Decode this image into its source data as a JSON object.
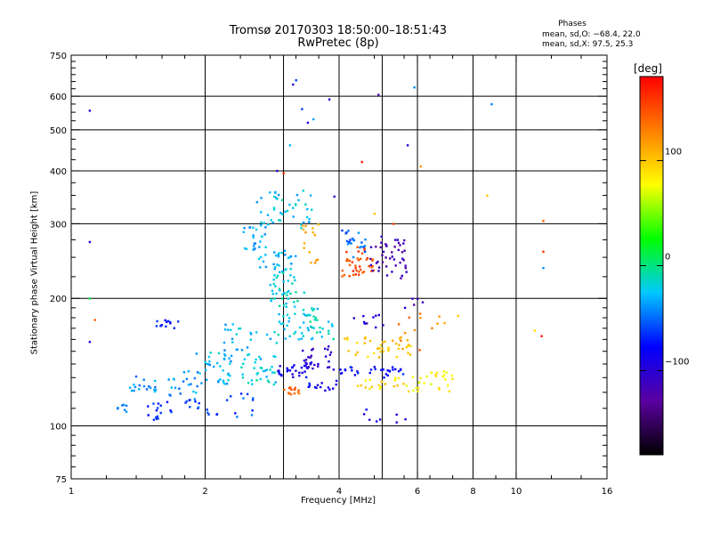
{
  "header": {
    "title_line1": "Tromsø 20170303 18:50:00–18:51:43",
    "title_line2": "RwPretec (8p)",
    "phases_label": "Phases",
    "stat_o": "mean, sd,O: −68.4, 22.0",
    "stat_x": "mean, sd,X:  97.5, 25.3"
  },
  "colorbar": {
    "title": "[deg]",
    "ticks": [
      {
        "value": 100,
        "label": "100"
      },
      {
        "value": 0,
        "label": "0"
      },
      {
        "value": -100,
        "label": "−100"
      }
    ],
    "range": [
      -180,
      180
    ],
    "colors": [
      "#000000",
      "#5a00a0",
      "#0000ff",
      "#00c8ff",
      "#00ff00",
      "#ffff00",
      "#ff7f00",
      "#ff0000"
    ]
  },
  "chart_data": {
    "type": "scatter",
    "xlabel": "Frequency [MHz]",
    "ylabel": "Stationary phase Virtual Height [km]",
    "xscale": "log",
    "yscale": "log",
    "xlim": [
      1,
      16
    ],
    "ylim": [
      75,
      750
    ],
    "grid": true,
    "xticks": [
      {
        "value": 1,
        "label": "1"
      },
      {
        "value": 2,
        "label": "2"
      },
      {
        "value": 4,
        "label": "4"
      },
      {
        "value": 6,
        "label": "6"
      },
      {
        "value": 8,
        "label": "8"
      },
      {
        "value": 10,
        "label": "10"
      },
      {
        "value": 16,
        "label": "16"
      }
    ],
    "yticks": [
      {
        "value": 75,
        "label": "75"
      },
      {
        "value": 100,
        "label": "100"
      },
      {
        "value": 200,
        "label": "200"
      },
      {
        "value": 300,
        "label": "300"
      },
      {
        "value": 400,
        "label": "400"
      },
      {
        "value": 500,
        "label": "500"
      },
      {
        "value": 600,
        "label": "600"
      },
      {
        "value": 750,
        "label": "750"
      }
    ],
    "x_gridlines": [
      2,
      3,
      4,
      5,
      6,
      8,
      10
    ],
    "y_gridlines": [
      100,
      200,
      300,
      400,
      500,
      600
    ],
    "clusters": [
      {
        "f": [
          1.25,
          1.35
        ],
        "h": [
          107,
          118
        ],
        "phase": -45,
        "n": 7
      },
      {
        "f": [
          1.35,
          1.55
        ],
        "h": [
          120,
          132
        ],
        "phase": -40,
        "n": 18
      },
      {
        "f": [
          1.45,
          1.7
        ],
        "h": [
          102,
          115
        ],
        "phase": -70,
        "n": 16
      },
      {
        "f": [
          1.55,
          1.75
        ],
        "h": [
          170,
          178
        ],
        "phase": -70,
        "n": 12
      },
      {
        "f": [
          1.65,
          1.95
        ],
        "h": [
          118,
          135
        ],
        "phase": -40,
        "n": 20
      },
      {
        "f": [
          1.8,
          2.0
        ],
        "h": [
          108,
          116
        ],
        "phase": -60,
        "n": 10
      },
      {
        "f": [
          1.9,
          2.3
        ],
        "h": [
          125,
          150
        ],
        "phase": -30,
        "n": 30
      },
      {
        "f": [
          2.0,
          2.6
        ],
        "h": [
          105,
          120
        ],
        "phase": -55,
        "n": 16
      },
      {
        "f": [
          2.2,
          2.9
        ],
        "h": [
          140,
          175
        ],
        "phase": -30,
        "n": 40
      },
      {
        "f": [
          2.4,
          2.9
        ],
        "h": [
          125,
          138
        ],
        "phase": -20,
        "n": 25
      },
      {
        "f": [
          2.4,
          2.75
        ],
        "h": [
          260,
          295
        ],
        "phase": -35,
        "n": 22
      },
      {
        "f": [
          2.6,
          3.5
        ],
        "h": [
          290,
          360
        ],
        "phase": -25,
        "n": 45
      },
      {
        "f": [
          2.6,
          3.2
        ],
        "h": [
          230,
          260
        ],
        "phase": -30,
        "n": 30
      },
      {
        "f": [
          2.8,
          3.4
        ],
        "h": [
          195,
          230
        ],
        "phase": -15,
        "n": 35
      },
      {
        "f": [
          2.9,
          3.6
        ],
        "h": [
          160,
          195
        ],
        "phase": -20,
        "n": 45
      },
      {
        "f": [
          2.9,
          3.4
        ],
        "h": [
          130,
          140
        ],
        "phase": -85,
        "n": 25
      },
      {
        "f": [
          3.3,
          3.9
        ],
        "h": [
          135,
          155
        ],
        "phase": -100,
        "n": 30
      },
      {
        "f": [
          3.0,
          3.3
        ],
        "h": [
          118,
          124
        ],
        "phase": 140,
        "n": 15
      },
      {
        "f": [
          3.3,
          3.6
        ],
        "h": [
          240,
          300
        ],
        "phase": 110,
        "n": 15
      },
      {
        "f": [
          3.4,
          4.0
        ],
        "h": [
          120,
          128
        ],
        "phase": -80,
        "n": 15
      },
      {
        "f": [
          3.4,
          3.9
        ],
        "h": [
          160,
          180
        ],
        "phase": -15,
        "n": 15
      },
      {
        "f": [
          4.05,
          4.25
        ],
        "h": [
          265,
          290
        ],
        "phase": -60,
        "n": 8
      },
      {
        "f": [
          4.05,
          4.8
        ],
        "h": [
          225,
          265
        ],
        "phase": 150,
        "n": 40
      },
      {
        "f": [
          4.7,
          5.7
        ],
        "h": [
          220,
          280
        ],
        "phase": -115,
        "n": 45
      },
      {
        "f": [
          4.1,
          4.6
        ],
        "h": [
          250,
          290
        ],
        "phase": -45,
        "n": 15
      },
      {
        "f": [
          4.1,
          5.8
        ],
        "h": [
          145,
          162
        ],
        "phase": 100,
        "n": 40
      },
      {
        "f": [
          4.0,
          5.6
        ],
        "h": [
          130,
          138
        ],
        "phase": -75,
        "n": 30
      },
      {
        "f": [
          4.4,
          5.6
        ],
        "h": [
          122,
          130
        ],
        "phase": 90,
        "n": 20
      },
      {
        "f": [
          4.3,
          5.2
        ],
        "h": [
          170,
          185
        ],
        "phase": -100,
        "n": 10
      },
      {
        "f": [
          5.6,
          7.2
        ],
        "h": [
          120,
          135
        ],
        "phase": 80,
        "n": 30
      },
      {
        "f": [
          5.4,
          6.8
        ],
        "h": [
          150,
          185
        ],
        "phase": 130,
        "n": 12
      },
      {
        "f": [
          5.6,
          6.4
        ],
        "h": [
          190,
          200
        ],
        "phase": -110,
        "n": 5
      },
      {
        "f": [
          4.5,
          5.7
        ],
        "h": [
          102,
          110
        ],
        "phase": -90,
        "n": 8
      }
    ],
    "points": [
      {
        "f": 1.1,
        "h": 555,
        "phase": -100
      },
      {
        "f": 1.1,
        "h": 272,
        "phase": -100
      },
      {
        "f": 1.1,
        "h": 158,
        "phase": -100
      },
      {
        "f": 1.13,
        "h": 178,
        "phase": 140
      },
      {
        "f": 1.1,
        "h": 200,
        "phase": 10
      },
      {
        "f": 3.15,
        "h": 640,
        "phase": -100
      },
      {
        "f": 3.2,
        "h": 655,
        "phase": -60
      },
      {
        "f": 3.8,
        "h": 590,
        "phase": -100
      },
      {
        "f": 3.5,
        "h": 530,
        "phase": -35
      },
      {
        "f": 3.4,
        "h": 520,
        "phase": -90
      },
      {
        "f": 3.3,
        "h": 560,
        "phase": -60
      },
      {
        "f": 3.1,
        "h": 460,
        "phase": -30
      },
      {
        "f": 2.9,
        "h": 400,
        "phase": -100
      },
      {
        "f": 3.0,
        "h": 395,
        "phase": 160
      },
      {
        "f": 3.9,
        "h": 348,
        "phase": -100
      },
      {
        "f": 4.5,
        "h": 420,
        "phase": 170
      },
      {
        "f": 4.9,
        "h": 605,
        "phase": -120
      },
      {
        "f": 5.9,
        "h": 630,
        "phase": -40
      },
      {
        "f": 5.7,
        "h": 460,
        "phase": -100
      },
      {
        "f": 6.1,
        "h": 410,
        "phase": 120
      },
      {
        "f": 6.9,
        "h": 175,
        "phase": 110
      },
      {
        "f": 7.4,
        "h": 182,
        "phase": 100
      },
      {
        "f": 8.8,
        "h": 575,
        "phase": -45
      },
      {
        "f": 8.6,
        "h": 350,
        "phase": 100
      },
      {
        "f": 11.5,
        "h": 305,
        "phase": 140
      },
      {
        "f": 11.5,
        "h": 258,
        "phase": 160
      },
      {
        "f": 11.5,
        "h": 236,
        "phase": -40
      },
      {
        "f": 11.0,
        "h": 168,
        "phase": 90
      },
      {
        "f": 11.4,
        "h": 163,
        "phase": 170
      },
      {
        "f": 4.8,
        "h": 317,
        "phase": 100
      },
      {
        "f": 5.3,
        "h": 300,
        "phase": 150
      }
    ]
  }
}
